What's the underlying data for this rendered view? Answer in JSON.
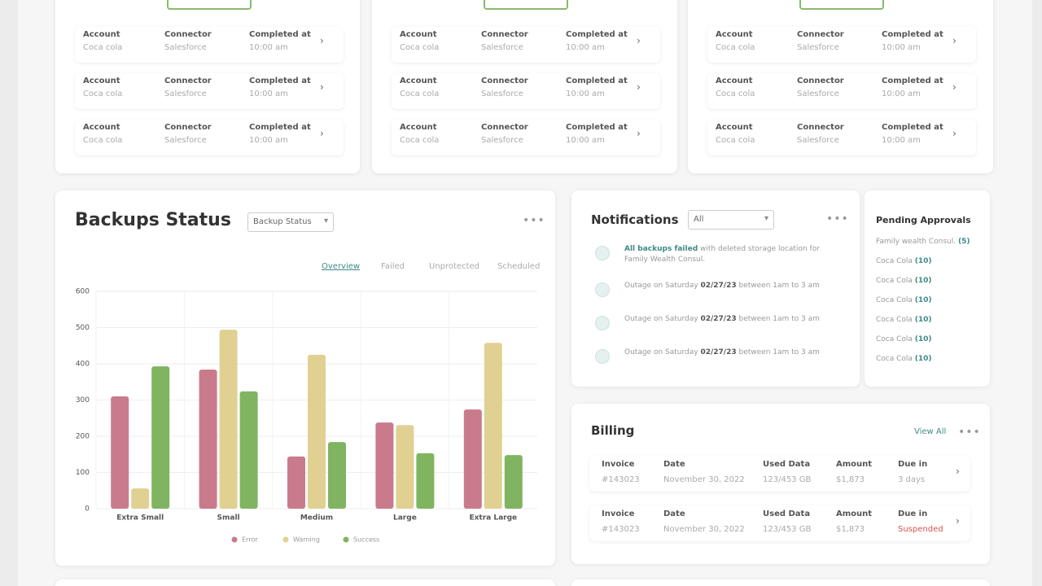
{
  "jobs": [
    {
      "rows": [
        {
          "account_label": "Account",
          "account": "Coca cola",
          "connector_label": "Connector",
          "connector": "Salesforce",
          "completed_label": "Completed at",
          "completed": "10:00 am"
        },
        {
          "account_label": "Account",
          "account": "Coca cola",
          "connector_label": "Connector",
          "connector": "Salesforce",
          "completed_label": "Completed at",
          "completed": "10:00 am"
        },
        {
          "account_label": "Account",
          "account": "Coca cola",
          "connector_label": "Connector",
          "connector": "Salesforce",
          "completed_label": "Completed at",
          "completed": "10:00 am"
        }
      ]
    },
    {
      "rows": [
        {
          "account_label": "Account",
          "account": "Coca cola",
          "connector_label": "Connector",
          "connector": "Salesforce",
          "completed_label": "Completed at",
          "completed": "10:00 am"
        },
        {
          "account_label": "Account",
          "account": "Coca cola",
          "connector_label": "Connector",
          "connector": "Salesforce",
          "completed_label": "Completed at",
          "completed": "10:00 am"
        },
        {
          "account_label": "Account",
          "account": "Coca cola",
          "connector_label": "Connector",
          "connector": "Salesforce",
          "completed_label": "Completed at",
          "completed": "10:00 am"
        }
      ]
    },
    {
      "rows": [
        {
          "account_label": "Account",
          "account": "Coca cola",
          "connector_label": "Connector",
          "connector": "Salesforce",
          "completed_label": "Completed at",
          "completed": "10:00 am"
        },
        {
          "account_label": "Account",
          "account": "Coca cola",
          "connector_label": "Connector",
          "connector": "Salesforce",
          "completed_label": "Completed at",
          "completed": "10:00 am"
        },
        {
          "account_label": "Account",
          "account": "Coca cola",
          "connector_label": "Connector",
          "connector": "Salesforce",
          "completed_label": "Completed at",
          "completed": "10:00 am"
        }
      ]
    }
  ],
  "backups": {
    "dropdown": "Backup Status",
    "tabs": [
      "Overview",
      "Failed",
      "Unprotected",
      "Scheduled"
    ]
  },
  "chart_data": {
    "type": "bar",
    "title": "Backups Status",
    "categories": [
      "Extra Small",
      "Small",
      "Medium",
      "Large",
      "Extra Large"
    ],
    "series": [
      {
        "name": "Error",
        "color": "#c97b8b",
        "values": [
          310,
          384,
          144,
          238,
          274
        ]
      },
      {
        "name": "Warning",
        "color": "#e0d193",
        "values": [
          56,
          494,
          425,
          231,
          458
        ]
      },
      {
        "name": "Success",
        "color": "#80b460",
        "values": [
          393,
          324,
          184,
          153,
          148
        ]
      }
    ],
    "ylim": [
      0,
      600
    ],
    "yticks": [
      0,
      100,
      200,
      300,
      400,
      500,
      600
    ],
    "grid": true,
    "legend": "bottom"
  },
  "notifications": {
    "title": "Notifications",
    "dropdown": "All",
    "items": [
      {
        "lead": "All backups failed",
        "rest": "with deleted storage location for Family Wealth Consul."
      },
      {
        "text": "Outage on Saturday",
        "date": "02/27/23",
        "rest": "between 1am to 3 am"
      },
      {
        "text": "Outage on Saturday",
        "date": "02/27/23",
        "rest": "between 1am to 3 am"
      },
      {
        "text": "Outage on Saturday",
        "date": "02/27/23",
        "rest": "between 1am to 3 am"
      }
    ]
  },
  "approvals": {
    "title": "Pending Approvals",
    "items": [
      {
        "name": "Family wealth Consul.",
        "count": "(5)"
      },
      {
        "name": "Coca Cola",
        "count": "(10)"
      },
      {
        "name": "Coca Cola",
        "count": "(10)"
      },
      {
        "name": "Coca Cola",
        "count": "(10)"
      },
      {
        "name": "Coca Cola",
        "count": "(10)"
      },
      {
        "name": "Coca Cola",
        "count": "(10)"
      },
      {
        "name": "Coca Cola",
        "count": "(10)"
      }
    ]
  },
  "billing": {
    "title": "Billing",
    "link": "View All",
    "columns": [
      "Invoice",
      "Date",
      "Used Data",
      "Amount",
      "Due in"
    ],
    "rows": [
      [
        "#143023",
        "November 30, 2022",
        "123/453 GB",
        "$1,873",
        "3 days"
      ],
      [
        "#143023",
        "November 30, 2022",
        "123/453 GB",
        "$1,873",
        "Suspended"
      ]
    ]
  }
}
